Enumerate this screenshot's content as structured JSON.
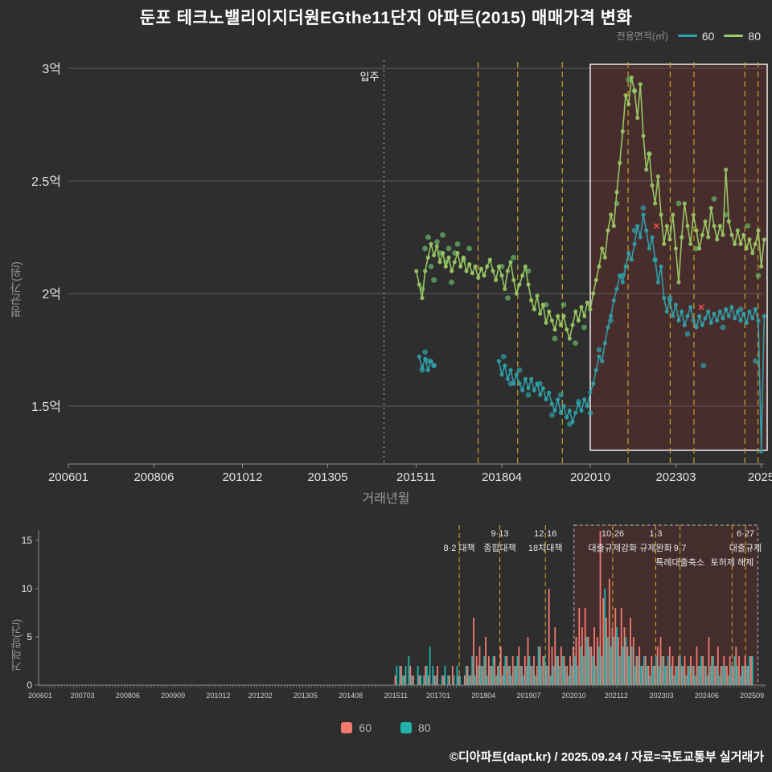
{
  "page": {
    "title": "둔포 테크노밸리이지더원EGthe11단지 아파트(2015) 매매가격 변화",
    "footer": "©디아파트(dapt.kr) / 2025.09.24 / 자료=국토교통부 실거래가",
    "colors": {
      "background": "#2e2e2e",
      "line_60": "#2fa3ad",
      "line_80": "#9ccc65",
      "bar_60": "#f4796f",
      "bar_80": "#1fb3ab",
      "policy_dash": "#c9a227",
      "highlight_fill": "rgba(170,45,45,0.22)"
    }
  },
  "top_legend": {
    "title": "전용면적(㎡)",
    "items": [
      {
        "label": "60",
        "color": "#2fa3ad"
      },
      {
        "label": "80",
        "color": "#9ccc65"
      }
    ]
  },
  "bottom_legend": {
    "items": [
      {
        "label": "60",
        "color": "#f4796f"
      },
      {
        "label": "80",
        "color": "#1fb3ab"
      }
    ]
  },
  "chart_data": [
    {
      "type": "line",
      "xlabel": "거래년월",
      "ylabel": "평균가(원)",
      "unit": "억원",
      "ylim": [
        1.25,
        3.05
      ],
      "yticks": [
        [
          "3억",
          3
        ],
        [
          "2.5억",
          2.5
        ],
        [
          "2억",
          2
        ],
        [
          "1.5억",
          1.5
        ]
      ],
      "xticks": [
        [
          "200601",
          2006.0
        ],
        [
          "200806",
          2008.42
        ],
        [
          "201012",
          2010.92
        ],
        [
          "201305",
          2013.33
        ],
        [
          "201511",
          2015.83
        ],
        [
          "201804",
          2018.25
        ],
        [
          "202010",
          2020.75
        ],
        [
          "202303",
          2023.17
        ],
        [
          "2025",
          2025.58
        ]
      ],
      "move_in": {
        "x": 2014.92,
        "label": "입주"
      },
      "policy_dates": [
        2017.58,
        2018.7,
        2019.96,
        2021.82,
        2023.01,
        2023.68,
        2025.12,
        2025.49
      ],
      "highlight": {
        "x0": 2020.75,
        "x1": 2025.83
      },
      "outliers": {
        "color": "#ff5252",
        "symbol": "x",
        "points": [
          [
            2022.62,
            2.3
          ],
          [
            2023.89,
            1.94
          ]
        ]
      },
      "series": [
        {
          "name": "60",
          "color": "#2fa3ad",
          "segments": [
            {
              "start": "2015-12",
              "values": [
                1.72,
                1.67,
                1.71,
                1.66,
                1.7,
                1.68
              ]
            },
            {
              "start": "2018-03",
              "values": [
                1.7,
                1.64,
                1.68,
                1.62,
                1.66,
                1.6,
                1.64,
                1.6,
                1.57,
                1.62,
                1.58,
                1.62,
                1.57,
                1.6,
                1.55,
                1.58,
                1.53,
                1.56,
                1.51,
                1.48,
                1.53,
                1.47,
                1.5,
                1.45,
                1.48,
                1.43,
                1.47,
                1.51,
                1.48,
                1.53,
                1.5,
                1.56,
                1.6,
                1.66,
                1.72,
                1.7,
                1.78,
                1.85,
                1.9,
                1.97,
                2.02,
                2.08,
                2.05,
                2.12,
                2.18,
                2.15,
                2.22,
                2.3,
                2.25,
                2.35,
                2.28,
                2.2,
                2.25,
                2.15,
                2.05,
                2.12,
                1.98,
                1.92,
                1.97,
                1.9,
                1.95,
                1.88,
                1.92,
                1.86,
                1.9,
                1.94,
                1.88,
                1.85,
                1.9,
                1.86,
                1.89,
                1.92,
                1.87,
                1.91,
                1.88,
                1.92,
                1.89,
                1.93,
                1.9,
                1.94,
                1.89,
                1.92,
                1.88,
                1.91,
                1.87,
                1.92,
                1.89,
                1.93,
                1.88,
                1.3,
                1.9
              ]
            }
          ]
        },
        {
          "name": "80",
          "color": "#9ccc65",
          "segments": [
            {
              "start": "2015-11",
              "values": [
                2.1,
                2.04,
                1.98,
                2.1,
                2.16,
                2.22,
                2.17,
                2.21,
                2.14,
                2.18,
                2.12,
                2.16,
                2.1,
                2.14,
                2.18,
                2.12,
                2.16,
                2.1,
                2.13,
                2.09,
                2.12,
                2.07,
                2.11,
                2.08,
                2.12,
                2.15,
                2.1,
                2.06,
                2.12,
                2.08,
                2.02,
                2.1,
                2.14,
                2.06,
                2.0,
                2.04,
                2.08,
                2.12,
                2.04,
                1.97,
                1.93,
                1.99,
                1.91,
                1.95,
                1.87,
                1.92,
                1.88,
                1.84,
                1.9,
                1.86,
                1.9,
                1.84,
                1.8,
                1.86,
                1.92,
                1.88,
                1.94,
                1.9,
                1.96,
                1.93,
                2.0,
                2.06,
                2.12,
                2.2,
                2.16,
                2.28,
                2.35,
                2.3,
                2.45,
                2.58,
                2.72,
                2.88,
                2.84,
                2.96,
                2.9,
                2.78,
                2.93,
                2.7,
                2.55,
                2.62,
                2.48,
                2.4,
                2.52,
                2.35,
                2.22,
                2.3,
                2.24,
                2.35,
                2.2,
                2.05,
                2.25,
                2.4,
                2.3,
                2.22,
                2.35,
                2.28,
                2.2,
                2.26,
                2.32,
                2.25,
                2.38,
                2.3,
                2.24,
                2.3,
                2.26,
                2.55,
                2.32,
                2.26,
                2.22,
                2.28,
                2.22,
                2.26,
                2.2,
                2.24,
                2.18,
                2.22,
                2.28,
                2.12,
                2.24
              ]
            }
          ]
        }
      ],
      "scatter": [
        {
          "name": "60",
          "color": "#2fa3ad",
          "points": [
            [
              2016.0,
              1.66
            ],
            [
              2016.08,
              1.74
            ],
            [
              2016.17,
              1.7
            ],
            [
              2016.33,
              1.68
            ],
            [
              2018.3,
              1.72
            ],
            [
              2018.5,
              1.6
            ],
            [
              2018.75,
              1.66
            ],
            [
              2019.0,
              1.55
            ],
            [
              2019.33,
              1.6
            ],
            [
              2019.67,
              1.46
            ],
            [
              2019.92,
              1.55
            ],
            [
              2020.17,
              1.42
            ],
            [
              2020.42,
              1.52
            ],
            [
              2020.75,
              1.47
            ],
            [
              2021.0,
              1.75
            ],
            [
              2021.33,
              1.88
            ],
            [
              2021.67,
              2.08
            ],
            [
              2022.0,
              2.28
            ],
            [
              2022.25,
              2.38
            ],
            [
              2022.58,
              2.15
            ],
            [
              2023.0,
              1.98
            ],
            [
              2023.5,
              1.82
            ],
            [
              2023.95,
              1.68
            ],
            [
              2024.5,
              1.85
            ],
            [
              2025.0,
              1.93
            ],
            [
              2025.42,
              1.7
            ]
          ]
        },
        {
          "name": "80",
          "color": "#66bb6a",
          "points": [
            [
              2016.0,
              2.02
            ],
            [
              2016.08,
              2.2
            ],
            [
              2016.17,
              2.25
            ],
            [
              2016.25,
              2.12
            ],
            [
              2016.33,
              2.06
            ],
            [
              2016.42,
              2.23
            ],
            [
              2016.5,
              2.18
            ],
            [
              2016.58,
              2.26
            ],
            [
              2016.67,
              2.14
            ],
            [
              2016.75,
              2.2
            ],
            [
              2016.83,
              2.05
            ],
            [
              2016.92,
              2.18
            ],
            [
              2017.0,
              2.22
            ],
            [
              2017.17,
              2.15
            ],
            [
              2017.33,
              2.2
            ],
            [
              2018.25,
              2.12
            ],
            [
              2018.42,
              1.98
            ],
            [
              2018.58,
              2.16
            ],
            [
              2019.0,
              2.1
            ],
            [
              2019.5,
              1.95
            ],
            [
              2019.75,
              1.8
            ],
            [
              2020.0,
              1.95
            ],
            [
              2020.33,
              1.78
            ],
            [
              2020.58,
              1.85
            ],
            [
              2021.5,
              2.4
            ],
            [
              2021.83,
              2.95
            ],
            [
              2022.0,
              2.9
            ],
            [
              2022.42,
              2.62
            ],
            [
              2023.25,
              2.4
            ],
            [
              2023.75,
              2.2
            ],
            [
              2024.25,
              2.42
            ],
            [
              2024.58,
              2.35
            ],
            [
              2025.2,
              2.3
            ],
            [
              2025.5,
              2.08
            ]
          ]
        }
      ]
    },
    {
      "type": "bar",
      "ylabel": "거래량(건)",
      "ylim": [
        0,
        16
      ],
      "yticks": [
        0,
        5,
        10,
        15
      ],
      "xticks": [
        [
          "200601",
          2006.0
        ],
        [
          "200703",
          2007.17
        ],
        [
          "200806",
          2008.42
        ],
        [
          "200909",
          2009.67
        ],
        [
          "201012",
          2010.92
        ],
        [
          "201202",
          2012.08
        ],
        [
          "201305",
          2013.33
        ],
        [
          "201408",
          2014.58
        ],
        [
          "201511",
          2015.83
        ],
        [
          "201701",
          2017.0
        ],
        [
          "201804",
          2018.25
        ],
        [
          "201907",
          2019.5
        ],
        [
          "202010",
          2020.75
        ],
        [
          "202112",
          2021.92
        ],
        [
          "202303",
          2023.17
        ],
        [
          "202406",
          2024.42
        ],
        [
          "202509",
          2025.67
        ]
      ],
      "start": "2015-11",
      "highlight": {
        "x0": 2020.75,
        "x1": 2025.83
      },
      "policy_dates": [
        2017.58,
        2018.7,
        2019.96,
        2021.82,
        2023.01,
        2023.68,
        2025.12,
        2025.49
      ],
      "annotations": [
        {
          "x": 2017.58,
          "row": 1,
          "lines": [
            "8·2 대책"
          ]
        },
        {
          "x": 2018.7,
          "row": 0,
          "lines": [
            "9·13",
            "종합대책"
          ]
        },
        {
          "x": 2019.96,
          "row": 0,
          "lines": [
            "12·16",
            "18차대책"
          ]
        },
        {
          "x": 2021.82,
          "row": 0,
          "lines": [
            "10·26",
            "대출규제강화"
          ]
        },
        {
          "x": 2023.01,
          "row": 0,
          "lines": [
            "1·3",
            "규제완화"
          ]
        },
        {
          "x": 2023.68,
          "row": 1,
          "lines": [
            "9·7",
            "특례대출축소"
          ]
        },
        {
          "x": 2025.12,
          "row": 2,
          "lines": [
            "토허제 해제"
          ]
        },
        {
          "x": 2025.49,
          "row": 0,
          "lines": [
            "6·27",
            "대출규제"
          ]
        }
      ],
      "series": [
        {
          "name": "60",
          "color": "#f4796f",
          "values": [
            1,
            0,
            2,
            1,
            0,
            2,
            1,
            0,
            1,
            0,
            2,
            1,
            0,
            1,
            2,
            0,
            1,
            0,
            1,
            2,
            0,
            1,
            0,
            1,
            2,
            1,
            7,
            3,
            4,
            2,
            5,
            3,
            2,
            3,
            2,
            4,
            2,
            3,
            2,
            3,
            2,
            4,
            2,
            3,
            5,
            2,
            3,
            2,
            4,
            3,
            2,
            10,
            4,
            6,
            3,
            4,
            3,
            2,
            3,
            4,
            5,
            8,
            6,
            8,
            5,
            4,
            6,
            5,
            16,
            9,
            7,
            11,
            6,
            8,
            5,
            8,
            6,
            4,
            7,
            5,
            3,
            4,
            2,
            3,
            2,
            3,
            2,
            4,
            5,
            3,
            2,
            4,
            3,
            2,
            3,
            2,
            3,
            2,
            3,
            2,
            4,
            2,
            3,
            2,
            5,
            3,
            2,
            4,
            2,
            3,
            2,
            3,
            2,
            4,
            3,
            2,
            3,
            2,
            3
          ]
        },
        {
          "name": "80",
          "color": "#1fb3ab",
          "values": [
            2,
            2,
            1,
            2,
            3,
            1,
            0,
            2,
            1,
            1,
            2,
            4,
            2,
            1,
            0,
            1,
            2,
            1,
            0,
            1,
            2,
            1,
            0,
            2,
            1,
            3,
            1,
            2,
            2,
            3,
            1,
            2,
            3,
            1,
            2,
            1,
            3,
            2,
            1,
            2,
            3,
            2,
            1,
            2,
            3,
            2,
            1,
            4,
            2,
            3,
            2,
            1,
            2,
            3,
            2,
            3,
            2,
            1,
            2,
            3,
            2,
            4,
            3,
            5,
            4,
            3,
            2,
            4,
            3,
            10,
            5,
            4,
            5,
            6,
            3,
            4,
            5,
            3,
            4,
            2,
            3,
            2,
            3,
            2,
            1,
            2,
            3,
            2,
            3,
            2,
            3,
            2,
            1,
            2,
            3,
            2,
            1,
            2,
            2,
            1,
            2,
            3,
            2,
            1,
            2,
            3,
            2,
            1,
            2,
            2,
            1,
            2,
            3,
            2,
            1,
            2,
            2,
            3,
            3
          ]
        }
      ]
    }
  ]
}
